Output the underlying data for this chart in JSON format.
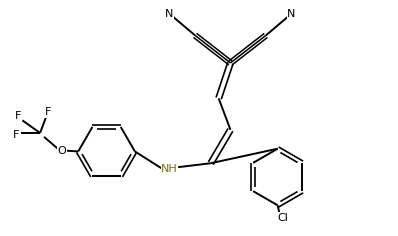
{
  "bg_color": "#ffffff",
  "bond_color": "#000000",
  "label_color_NH": "#7a7000",
  "figsize": [
    3.98,
    2.36
  ],
  "dpi": 100,
  "xlim": [
    0,
    10
  ],
  "ylim": [
    0,
    6
  ]
}
